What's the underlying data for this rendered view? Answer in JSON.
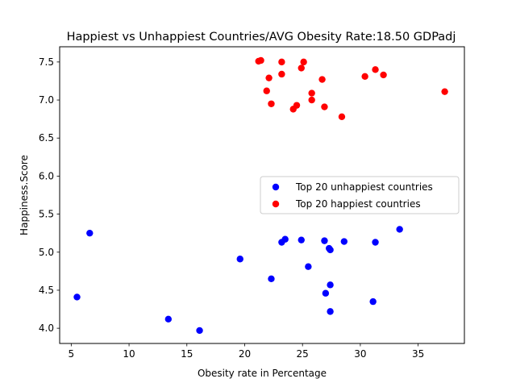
{
  "chart_data": {
    "type": "scatter",
    "title": "Happiest vs Unhappiest Countries/AVG Obesity Rate:18.50 GDPadj",
    "xlabel": "Obesity rate in Percentage",
    "ylabel": "Happiness.Score",
    "xlim": [
      4.0,
      39.0
    ],
    "ylim": [
      3.8,
      7.7
    ],
    "xticks": [
      5,
      10,
      15,
      20,
      25,
      30,
      35
    ],
    "yticks": [
      4.0,
      4.5,
      5.0,
      5.5,
      6.0,
      6.5,
      7.0,
      7.5
    ],
    "xtick_labels": [
      "5",
      "10",
      "15",
      "20",
      "25",
      "30",
      "35"
    ],
    "ytick_labels": [
      "4.0",
      "4.5",
      "5.0",
      "5.5",
      "6.0",
      "6.5",
      "7.0",
      "7.5"
    ],
    "grid": false,
    "legend_position": "center-right",
    "series": [
      {
        "name": "Top 20 unhappiest countries",
        "color": "#0000ff",
        "points": [
          [
            6.6,
            5.25
          ],
          [
            5.5,
            4.41
          ],
          [
            13.4,
            4.12
          ],
          [
            16.1,
            3.97
          ],
          [
            19.6,
            4.91
          ],
          [
            22.3,
            4.65
          ],
          [
            23.2,
            5.13
          ],
          [
            23.5,
            5.17
          ],
          [
            24.9,
            5.16
          ],
          [
            25.5,
            4.81
          ],
          [
            26.9,
            5.15
          ],
          [
            27.0,
            4.46
          ],
          [
            27.3,
            5.05
          ],
          [
            27.4,
            5.03
          ],
          [
            27.4,
            4.57
          ],
          [
            27.4,
            4.22
          ],
          [
            28.6,
            5.14
          ],
          [
            31.1,
            4.35
          ],
          [
            31.3,
            5.13
          ],
          [
            33.4,
            5.3
          ]
        ]
      },
      {
        "name": "Top 20 happiest countries",
        "color": "#ff0000",
        "points": [
          [
            21.2,
            7.51
          ],
          [
            21.4,
            7.52
          ],
          [
            21.9,
            7.12
          ],
          [
            22.1,
            7.29
          ],
          [
            22.3,
            6.95
          ],
          [
            23.2,
            7.5
          ],
          [
            23.2,
            7.34
          ],
          [
            24.2,
            6.88
          ],
          [
            24.5,
            6.93
          ],
          [
            24.9,
            7.42
          ],
          [
            25.1,
            7.5
          ],
          [
            25.8,
            7.09
          ],
          [
            25.8,
            7.0
          ],
          [
            26.7,
            7.27
          ],
          [
            26.9,
            6.91
          ],
          [
            28.4,
            6.78
          ],
          [
            30.4,
            7.31
          ],
          [
            31.3,
            7.4
          ],
          [
            32.0,
            7.33
          ],
          [
            37.3,
            7.11
          ]
        ]
      }
    ]
  }
}
